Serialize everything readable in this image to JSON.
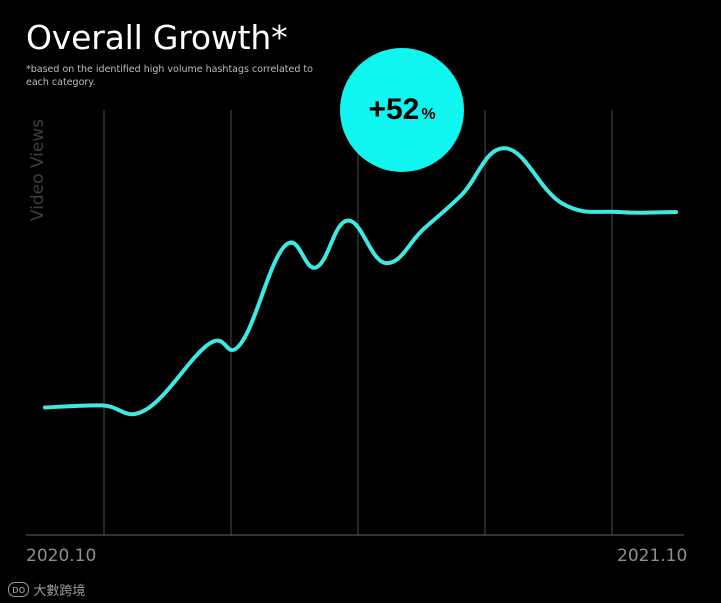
{
  "header": {
    "title": "Overall Growth*",
    "subtitle": "*based on the identified high volume hashtags correlated to each category."
  },
  "badge": {
    "value": "+52",
    "unit": "%",
    "color": "#0ff5f0"
  },
  "watermark": {
    "logo": "ᴅᴏ",
    "text": "大數跨境"
  },
  "chart_data": {
    "type": "line",
    "title": "Overall Growth*",
    "subtitle": "*based on the identified high volume hashtags correlated to each category.",
    "ylabel": "Video Views",
    "xlabel": "",
    "x_tick_labels": [
      "2020.10",
      "2021.10"
    ],
    "x": [
      0,
      0.09,
      0.16,
      0.26,
      0.31,
      0.38,
      0.43,
      0.48,
      0.54,
      0.6,
      0.66,
      0.73,
      0.82,
      0.91,
      1.0
    ],
    "series": [
      {
        "color": "#3ee8e3",
        "values": [
          30,
          30.5,
          29.5,
          45,
          45,
          68,
          63,
          74,
          64,
          72,
          80,
          91,
          78,
          76,
          76
        ]
      }
    ],
    "ylim": [
      0,
      100
    ],
    "grid": "vertical",
    "legend": "none",
    "annotation": "+52%"
  }
}
